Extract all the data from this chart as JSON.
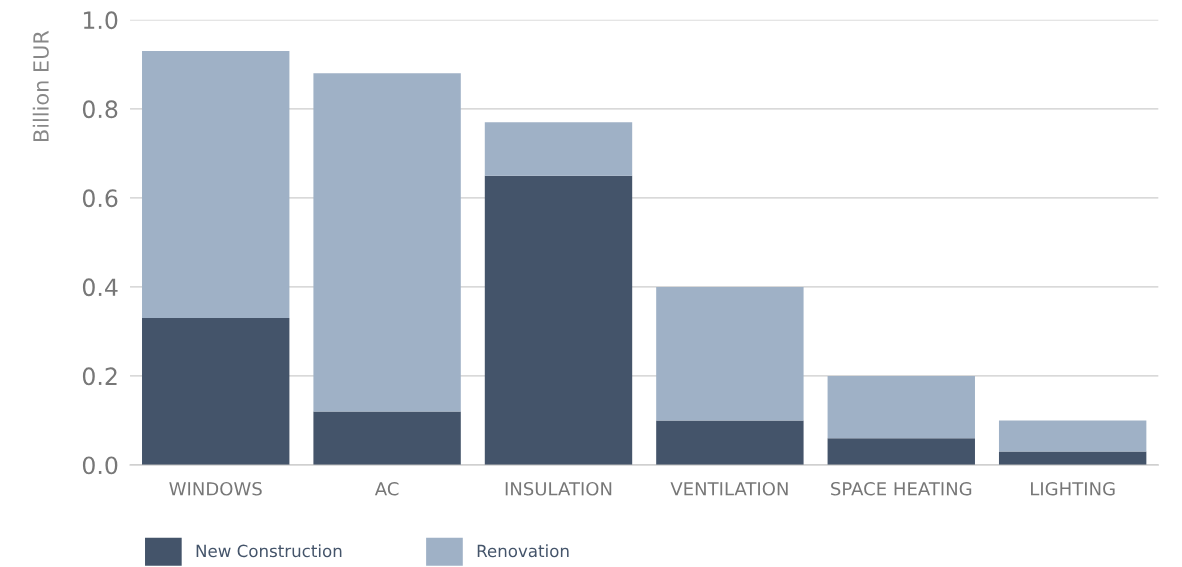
{
  "chart_data": {
    "type": "bar",
    "stacked": true,
    "ylabel": "Billion EUR",
    "categories": [
      "WINDOWS",
      "AC",
      "INSULATION",
      "VENTILATION",
      "SPACE HEATING",
      "LIGHTING"
    ],
    "series": [
      {
        "name": "New Construction",
        "color": "#44546a",
        "values": [
          0.33,
          0.12,
          0.65,
          0.1,
          0.06,
          0.03
        ]
      },
      {
        "name": "Renovation",
        "color": "#9fb1c6",
        "values": [
          0.6,
          0.76,
          0.12,
          0.3,
          0.14,
          0.07
        ]
      }
    ],
    "ylim": [
      0,
      1.0
    ],
    "yticks": [
      {
        "value": 0,
        "label": "0.0"
      },
      {
        "value": 0.2,
        "label": "0.2"
      },
      {
        "value": 0.4,
        "label": "0.4"
      },
      {
        "value": 0.6,
        "label": "0.6"
      },
      {
        "value": 0.8,
        "label": "0.8"
      },
      {
        "value": 1.0,
        "label": "1.0"
      }
    ],
    "grid": "y",
    "legend": "bottom left"
  }
}
